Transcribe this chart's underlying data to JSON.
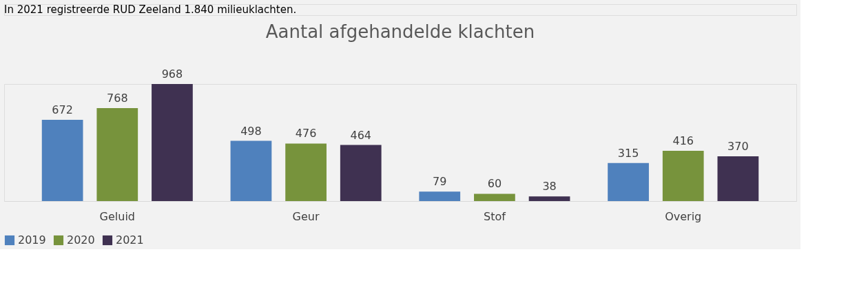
{
  "chart_data": {
    "type": "bar",
    "title": "Aantal afgehandelde klachten",
    "annotations": [
      "In 2021 registreerde RUD Zeeland 1.840 milieuklachten."
    ],
    "categories": [
      "Geluid",
      "Geur",
      "Stof",
      "Overig"
    ],
    "series": [
      {
        "name": "2019",
        "color": "#4f81bd",
        "values": [
          672,
          498,
          79,
          315
        ]
      },
      {
        "name": "2020",
        "color": "#77933c",
        "values": [
          768,
          476,
          60,
          416
        ]
      },
      {
        "name": "2021",
        "color": "#3f3151",
        "values": [
          968,
          464,
          38,
          370
        ]
      }
    ],
    "data_labels": true,
    "legend": "bottom",
    "grid": false
  }
}
